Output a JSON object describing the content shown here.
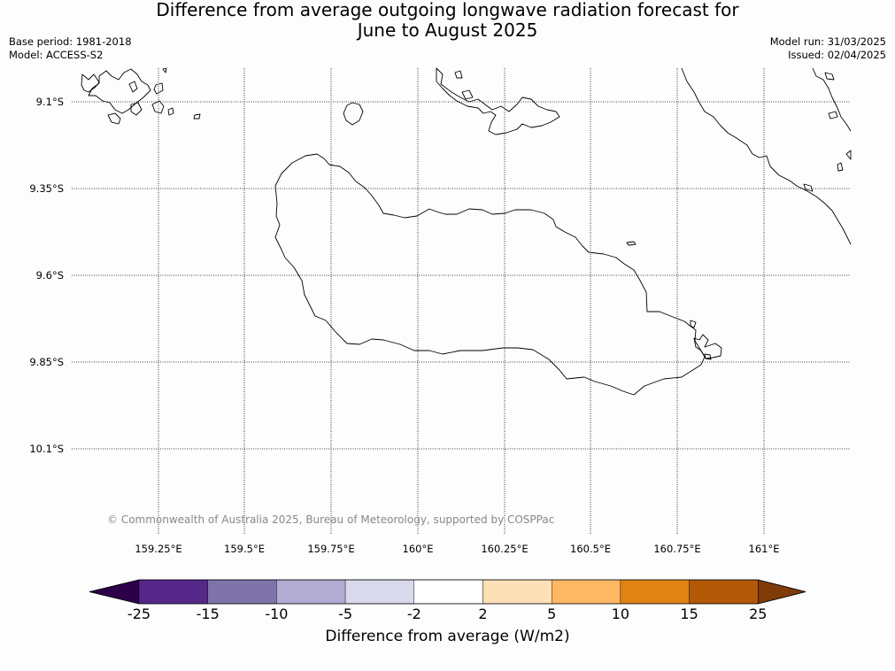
{
  "title": {
    "line1": "Difference from average outgoing longwave radiation forecast for",
    "line2": "June to August 2025"
  },
  "meta": {
    "base_period": "Base period: 1981-2018",
    "model": "Model: ACCESS-S2",
    "model_run": "Model run: 31/03/2025",
    "issued": "Issued: 02/04/2025"
  },
  "map": {
    "lat_labels": [
      "9.1°S",
      "9.35°S",
      "9.6°S",
      "9.85°S",
      "10.1°S"
    ],
    "lon_labels": [
      "159.25°E",
      "159.5°E",
      "159.75°E",
      "160°E",
      "160.25°E",
      "160.5°E",
      "160.75°E",
      "161°E"
    ],
    "grid_style": "dotted",
    "coastline_color": "#000000",
    "copyright": "© Commonwealth of Australia 2025, Bureau of Meteorology, supported by COSPPac"
  },
  "colorbar": {
    "label": "Difference from average (W/m2)",
    "tick_labels": [
      "-25",
      "-15",
      "-10",
      "-5",
      "-2",
      "2",
      "5",
      "10",
      "15",
      "25"
    ],
    "under_color": "#2d004b",
    "over_color": "#7f3b08",
    "colors": [
      "#542788",
      "#8073ac",
      "#b2abd2",
      "#d8daeb",
      "#ffffff",
      "#fee0b6",
      "#fdb863",
      "#e08214",
      "#b35806"
    ]
  }
}
